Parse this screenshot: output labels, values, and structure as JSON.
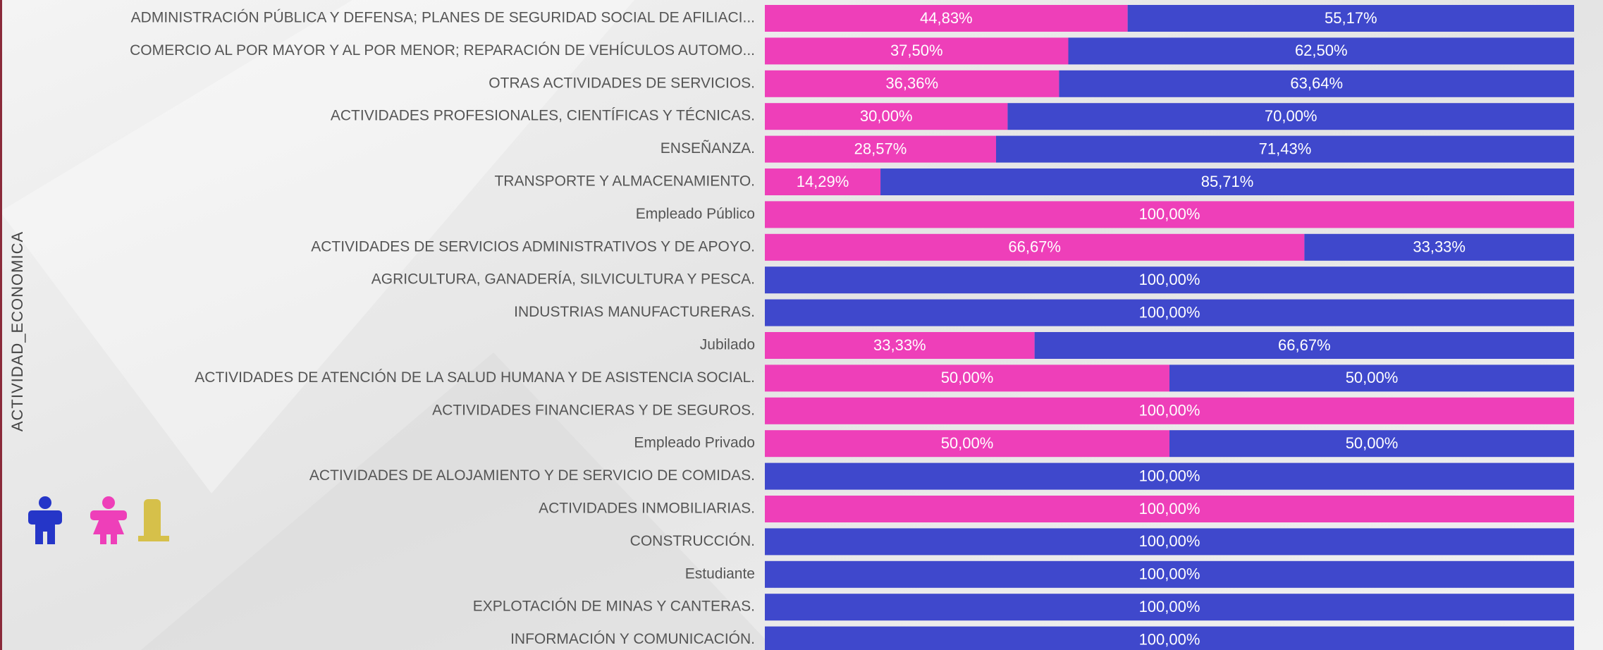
{
  "chart_data": {
    "type": "stacked_bar_horizontal",
    "ylabel": "ACTIVIDAD_ECONOMICA",
    "categories": [
      "ADMINISTRACIÓN PÚBLICA Y DEFENSA; PLANES DE SEGURIDAD SOCIAL DE AFILIACI...",
      "COMERCIO AL POR MAYOR Y AL POR MENOR; REPARACIÓN DE VEHÍCULOS AUTOMO...",
      "OTRAS ACTIVIDADES DE SERVICIOS.",
      "ACTIVIDADES PROFESIONALES, CIENTÍFICAS Y TÉCNICAS.",
      "ENSEÑANZA.",
      "TRANSPORTE Y ALMACENAMIENTO.",
      "Empleado Público",
      "ACTIVIDADES DE SERVICIOS ADMINISTRATIVOS Y DE APOYO.",
      "AGRICULTURA, GANADERÍA, SILVICULTURA Y PESCA.",
      "INDUSTRIAS MANUFACTURERAS.",
      "Jubilado",
      "ACTIVIDADES DE ATENCIÓN DE LA SALUD HUMANA Y DE ASISTENCIA SOCIAL.",
      "ACTIVIDADES FINANCIERAS Y DE SEGUROS.",
      "Empleado Privado",
      "ACTIVIDADES DE ALOJAMIENTO Y DE SERVICIO DE COMIDAS.",
      "ACTIVIDADES INMOBILIARIAS.",
      "CONSTRUCCIÓN.",
      "Estudiante",
      "EXPLOTACIÓN DE MINAS Y CANTERAS.",
      "INFORMACIÓN Y COMUNICACIÓN."
    ],
    "series": [
      {
        "color": "#ee3fb9",
        "values": [
          44.83,
          37.5,
          36.36,
          30,
          28.57,
          14.29,
          100,
          66.67,
          0,
          0,
          33.33,
          50,
          100,
          50,
          0,
          100,
          0,
          0,
          0,
          0
        ],
        "value_labels": [
          "44,83%",
          "37,50%",
          "36,36%",
          "30,00%",
          "28,57%",
          "14,29%",
          "100,00%",
          "66,67%",
          null,
          null,
          "33,33%",
          "50,00%",
          "100,00%",
          "50,00%",
          null,
          "100,00%",
          null,
          null,
          null,
          null
        ]
      },
      {
        "color": "#3f48cc",
        "values": [
          55.17,
          62.5,
          63.64,
          70,
          71.43,
          85.71,
          0,
          33.33,
          100,
          100,
          66.67,
          50,
          0,
          50,
          100,
          0,
          100,
          100,
          100,
          100
        ],
        "value_labels": [
          "55,17%",
          "62,50%",
          "63,64%",
          "70,00%",
          "71,43%",
          "85,71%",
          null,
          "33,33%",
          "100,00%",
          "100,00%",
          "66,67%",
          "50,00%",
          null,
          "50,00%",
          "100,00%",
          null,
          "100,00%",
          "100,00%",
          "100,00%",
          "100,00%"
        ]
      }
    ],
    "xlim": [
      0,
      100
    ]
  }
}
